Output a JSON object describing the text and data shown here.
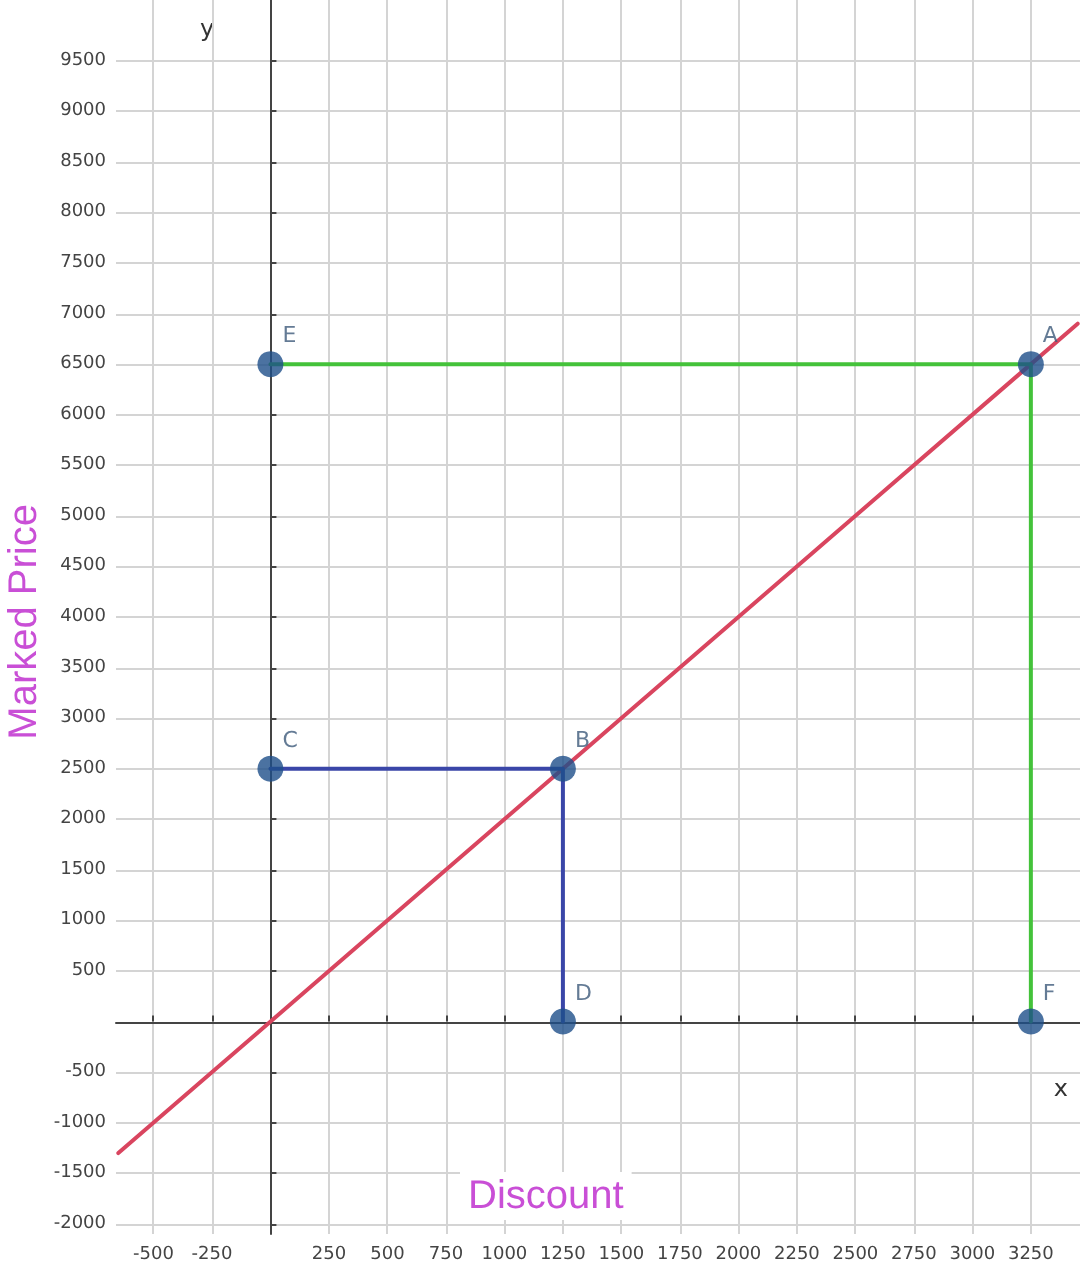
{
  "chart_data": {
    "type": "line",
    "xlabel": "Discount",
    "ylabel": "Marked Price",
    "x": [
      -650,
      3450
    ],
    "series": [
      {
        "color": "#d9455f",
        "values": [
          -1300,
          6900
        ]
      },
      {
        "color": "#44c23a",
        "x": [
          0,
          3250,
          3250
        ],
        "values": [
          6500,
          6500,
          0
        ]
      },
      {
        "color": "#3a46a8",
        "x": [
          0,
          1250,
          1250
        ],
        "values": [
          2500,
          2500,
          0
        ]
      },
      {
        "type": "scatter",
        "color": "#1e4f8a",
        "x": [
          3250,
          1250,
          0,
          1250,
          0,
          3250
        ],
        "values": [
          6500,
          2500,
          2500,
          0,
          6500,
          0
        ]
      }
    ],
    "annotations": [
      "x",
      "y",
      {
        "text": "A",
        "x": 3250,
        "y": 6500
      },
      {
        "text": "B",
        "x": 1250,
        "y": 2500
      },
      {
        "text": "C",
        "x": 0,
        "y": 2500
      },
      {
        "text": "D",
        "x": 1250,
        "y": 0
      },
      {
        "text": "E",
        "x": 0,
        "y": 6500
      },
      {
        "text": "F",
        "x": 3250,
        "y": 0
      }
    ],
    "xlim": [
      -660,
      3460
    ],
    "xticks": [
      -500,
      -250,
      {
        "value": 0,
        "label": null
      },
      250,
      500,
      750,
      1000,
      1250,
      1500,
      1750,
      2000,
      2250,
      2500,
      2750,
      3000,
      3250
    ],
    "ylim": [
      -2100,
      10100
    ],
    "yticks": [
      -2000,
      -1500,
      -1000,
      -500,
      {
        "value": 0,
        "label": null
      },
      500,
      1000,
      1500,
      2000,
      2500,
      3000,
      3500,
      4000,
      4500,
      5000,
      5500,
      6000,
      6500,
      7000,
      7500,
      8000,
      8500,
      9000,
      9500
    ],
    "grid": true,
    "line_style": "solid"
  }
}
